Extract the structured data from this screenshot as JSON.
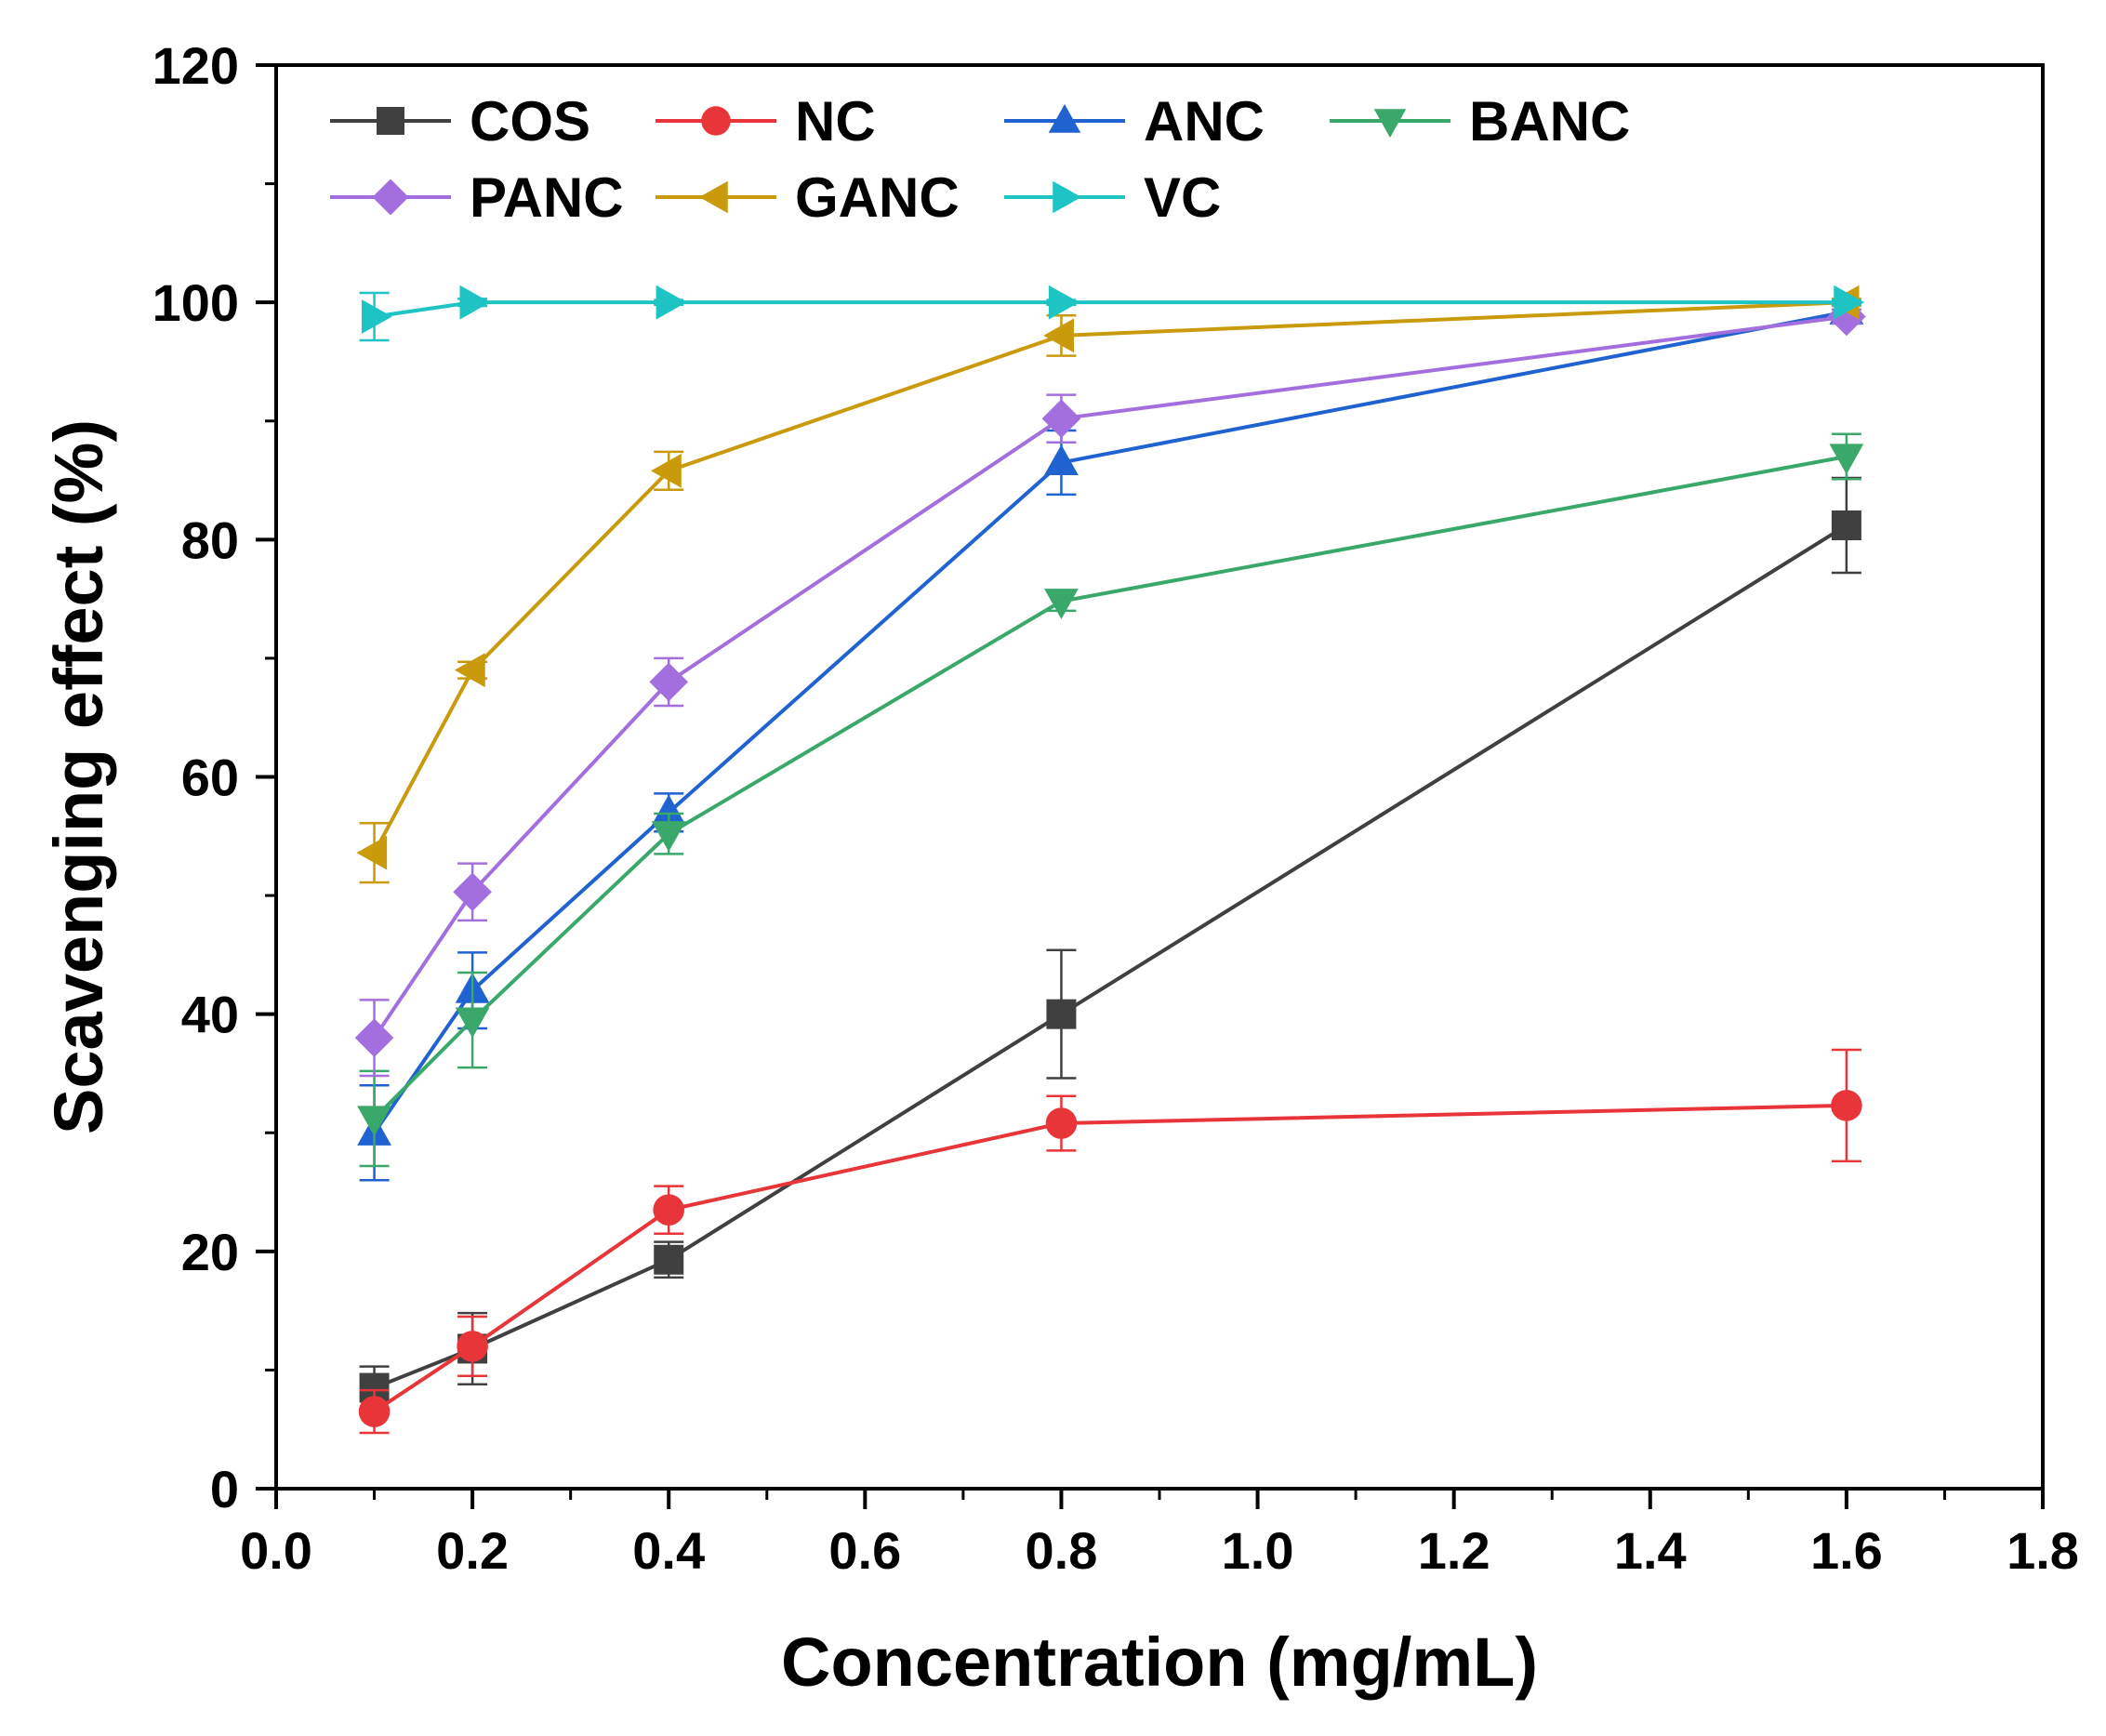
{
  "chart_data": {
    "type": "line",
    "title": "",
    "xlabel": "Concentration (mg/mL)",
    "ylabel": "Scavenging effect (%)",
    "xlim": [
      0.0,
      1.8
    ],
    "ylim": [
      0,
      120
    ],
    "x_ticks": [
      "0.0",
      "0.2",
      "0.4",
      "0.6",
      "0.8",
      "1.0",
      "1.2",
      "1.4",
      "1.6",
      "1.8"
    ],
    "y_ticks": [
      "0",
      "20",
      "40",
      "60",
      "80",
      "100",
      "120"
    ],
    "x": [
      0.1,
      0.2,
      0.4,
      0.8,
      1.6
    ],
    "grid": false,
    "legend_position": "top-left",
    "series": [
      {
        "name": "COS",
        "color": "#404040",
        "marker": "square",
        "values": [
          8.5,
          11.8,
          19.3,
          40.0,
          81.2
        ],
        "errors": [
          1.8,
          3.0,
          1.5,
          5.4,
          4.0
        ]
      },
      {
        "name": "NC",
        "color": "#e8353a",
        "marker": "circle",
        "values": [
          6.5,
          12.0,
          23.5,
          30.8,
          32.3
        ],
        "errors": [
          1.8,
          2.5,
          2.0,
          2.3,
          4.7
        ]
      },
      {
        "name": "ANC",
        "color": "#1f62d0",
        "marker": "triangle-up",
        "values": [
          30.0,
          42.0,
          57.0,
          86.5,
          99.2
        ],
        "errors": [
          4.0,
          3.2,
          1.6,
          2.7,
          0.6
        ]
      },
      {
        "name": "BANC",
        "color": "#3aa86b",
        "marker": "triangle-down",
        "values": [
          31.2,
          39.5,
          55.2,
          74.8,
          87.0
        ],
        "errors": [
          4.0,
          4.0,
          1.7,
          0.8,
          1.9
        ]
      },
      {
        "name": "PANC",
        "color": "#a36fde",
        "marker": "diamond",
        "values": [
          38.0,
          50.3,
          68.0,
          90.2,
          98.8
        ],
        "errors": [
          3.2,
          2.4,
          2.0,
          2.0,
          0.6
        ]
      },
      {
        "name": "GANC",
        "color": "#c99a0b",
        "marker": "triangle-left",
        "values": [
          53.6,
          69.0,
          85.8,
          97.2,
          100.0
        ],
        "errors": [
          2.5,
          0.7,
          1.6,
          1.7,
          0.3
        ]
      },
      {
        "name": "VC",
        "color": "#1ec4c4",
        "marker": "triangle-right",
        "values": [
          98.8,
          100.0,
          100.0,
          100.0,
          100.0
        ],
        "errors": [
          2.0,
          0.3,
          0.2,
          0.2,
          0.2
        ]
      }
    ]
  }
}
